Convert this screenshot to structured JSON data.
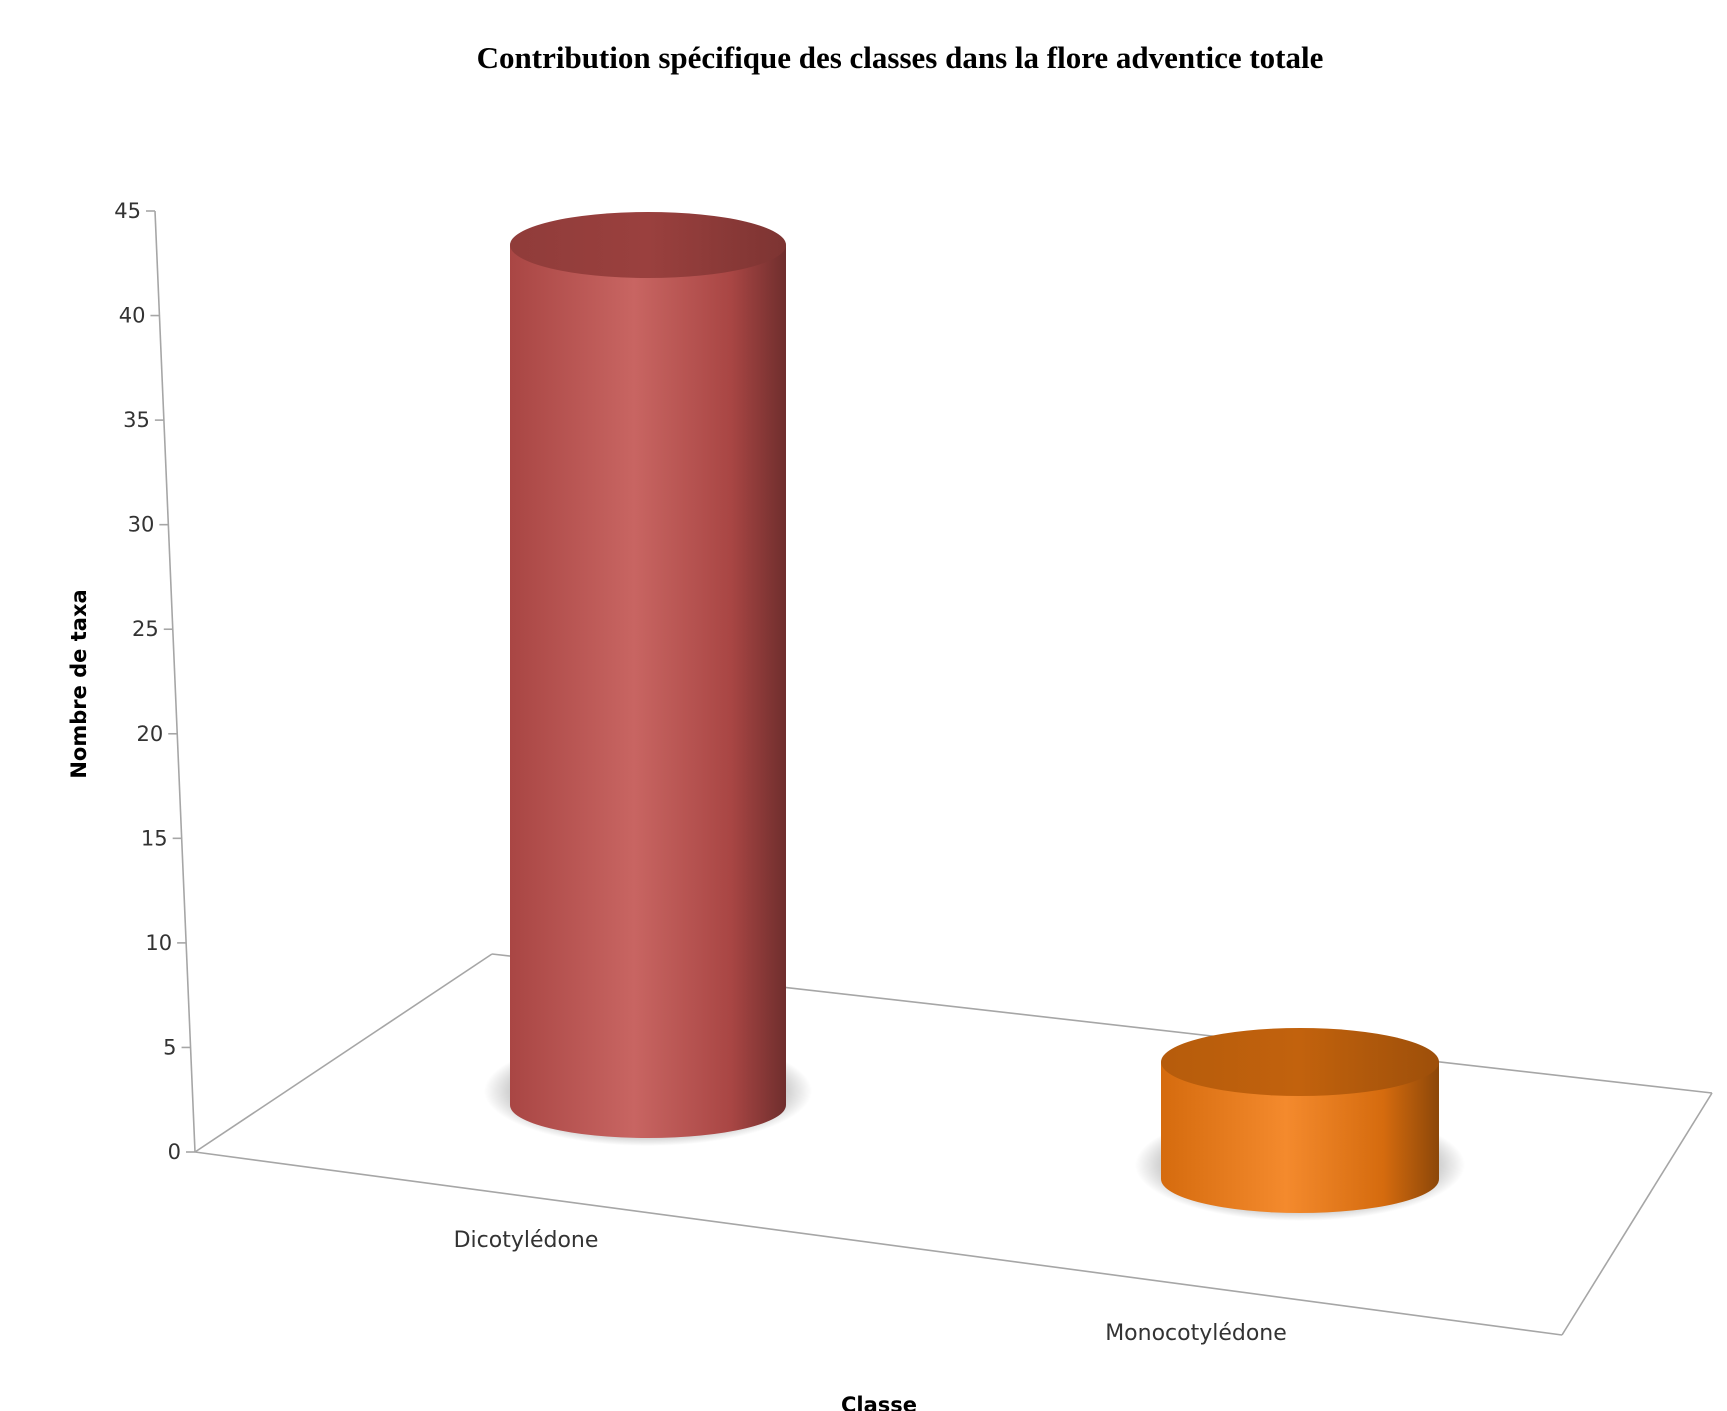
{
  "chart_data": {
    "type": "bar",
    "style": "3d-cylinder",
    "title": "Contribution spécifique des classes dans la flore adventice totale",
    "xlabel": "Classe",
    "ylabel": "Nombre de taxa",
    "categories": [
      "Dicotylédone",
      "Monocotylédone"
    ],
    "values": [
      43,
      6
    ],
    "ylim": [
      0,
      45
    ],
    "yticks": [
      0,
      5,
      10,
      15,
      20,
      25,
      30,
      35,
      40,
      45
    ],
    "grid": false,
    "legend": "none",
    "colors": [
      "#c0504d",
      "#f27a10"
    ]
  }
}
